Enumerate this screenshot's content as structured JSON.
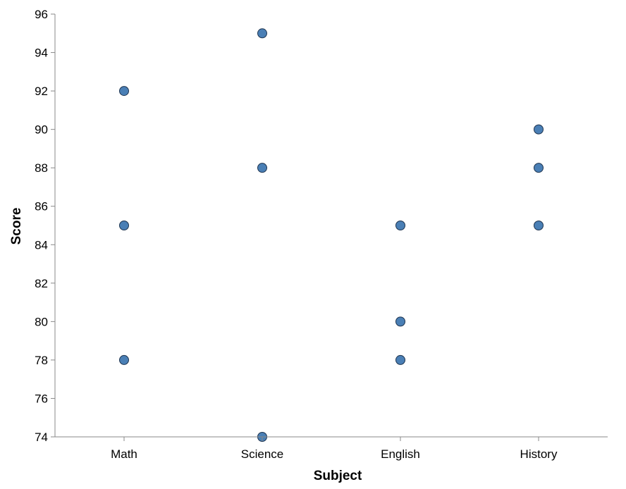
{
  "chart_data": {
    "type": "scatter",
    "categories": [
      "Math",
      "Science",
      "English",
      "History"
    ],
    "points": [
      {
        "x": "Math",
        "y": 92
      },
      {
        "x": "Math",
        "y": 85
      },
      {
        "x": "Math",
        "y": 78
      },
      {
        "x": "Science",
        "y": 95
      },
      {
        "x": "Science",
        "y": 88
      },
      {
        "x": "Science",
        "y": 74
      },
      {
        "x": "English",
        "y": 85
      },
      {
        "x": "English",
        "y": 80
      },
      {
        "x": "English",
        "y": 78
      },
      {
        "x": "History",
        "y": 90
      },
      {
        "x": "History",
        "y": 88
      },
      {
        "x": "History",
        "y": 85
      }
    ],
    "xlabel": "Subject",
    "ylabel": "Score",
    "ylim": [
      74,
      96
    ],
    "yticks": [
      74,
      76,
      78,
      80,
      82,
      84,
      86,
      88,
      90,
      92,
      94,
      96
    ],
    "grid": false,
    "point_color": "#4a7fb5",
    "point_stroke": "#1f3550"
  }
}
